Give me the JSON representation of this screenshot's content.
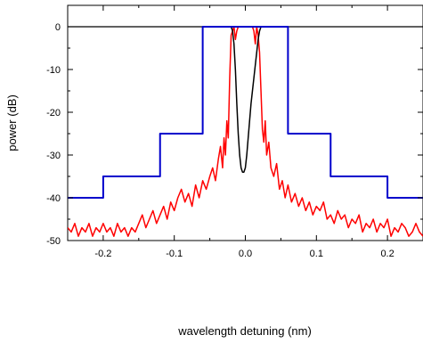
{
  "chart_data": {
    "type": "line",
    "title": "",
    "xlabel": "wavelength detuning (nm)",
    "ylabel": "power (dB)",
    "xlim": [
      -0.25,
      0.25
    ],
    "ylim": [
      -50,
      5
    ],
    "x_ticks": [
      -0.2,
      -0.1,
      0.0,
      0.1,
      0.2
    ],
    "x_tick_labels": [
      "-0.2",
      "-0.1",
      "0.0",
      "0.1",
      "0.2"
    ],
    "y_ticks": [
      0,
      -10,
      -20,
      -30,
      -40,
      -50
    ],
    "y_tick_labels": [
      "0",
      "-10",
      "-20",
      "-30",
      "-40",
      "-50"
    ],
    "grid": false,
    "legend": "none",
    "series": [
      {
        "color": "#ff0000",
        "style": "noisy-line",
        "x": [
          -0.25,
          -0.245,
          -0.24,
          -0.235,
          -0.23,
          -0.225,
          -0.22,
          -0.215,
          -0.21,
          -0.205,
          -0.2,
          -0.195,
          -0.19,
          -0.185,
          -0.18,
          -0.175,
          -0.17,
          -0.165,
          -0.16,
          -0.155,
          -0.15,
          -0.145,
          -0.14,
          -0.135,
          -0.13,
          -0.125,
          -0.12,
          -0.115,
          -0.11,
          -0.105,
          -0.1,
          -0.095,
          -0.09,
          -0.085,
          -0.08,
          -0.075,
          -0.07,
          -0.065,
          -0.06,
          -0.055,
          -0.05,
          -0.046,
          -0.042,
          -0.038,
          -0.035,
          -0.032,
          -0.03,
          -0.028,
          -0.026,
          -0.024,
          -0.022,
          -0.02,
          -0.018,
          -0.016,
          -0.014,
          -0.012,
          -0.01,
          -0.005,
          0.0,
          0.005,
          0.01,
          0.012,
          0.014,
          0.016,
          0.018,
          0.02,
          0.022,
          0.024,
          0.026,
          0.028,
          0.03,
          0.033,
          0.036,
          0.04,
          0.044,
          0.048,
          0.052,
          0.056,
          0.06,
          0.065,
          0.07,
          0.075,
          0.08,
          0.085,
          0.09,
          0.095,
          0.1,
          0.105,
          0.11,
          0.115,
          0.12,
          0.125,
          0.13,
          0.135,
          0.14,
          0.145,
          0.15,
          0.155,
          0.16,
          0.165,
          0.17,
          0.175,
          0.18,
          0.185,
          0.19,
          0.195,
          0.2,
          0.205,
          0.21,
          0.215,
          0.22,
          0.225,
          0.23,
          0.235,
          0.24,
          0.245,
          0.25
        ],
        "y": [
          -47,
          -48,
          -46,
          -49,
          -47,
          -48,
          -46,
          -49,
          -47,
          -48,
          -46,
          -48,
          -47,
          -49,
          -46,
          -48,
          -47,
          -49,
          -47,
          -48,
          -46,
          -44,
          -47,
          -45,
          -43,
          -46,
          -44,
          -42,
          -45,
          -41,
          -43,
          -40,
          -38,
          -41,
          -39,
          -42,
          -37,
          -40,
          -36,
          -38,
          -35,
          -33,
          -36,
          -31,
          -28,
          -33,
          -26,
          -30,
          -22,
          -26,
          -12,
          -2,
          -1,
          0,
          -3,
          -1,
          0,
          0,
          0,
          0,
          0,
          -1,
          -4,
          0,
          -2,
          -6,
          -15,
          -24,
          -27,
          -22,
          -30,
          -27,
          -33,
          -35,
          -32,
          -38,
          -36,
          -40,
          -37,
          -41,
          -39,
          -42,
          -40,
          -43,
          -41,
          -44,
          -42,
          -43,
          -41,
          -45,
          -44,
          -46,
          -43,
          -45,
          -44,
          -47,
          -45,
          -46,
          -44,
          -48,
          -46,
          -47,
          -45,
          -48,
          -46,
          -47,
          -45,
          -49,
          -47,
          -48,
          -46,
          -47,
          -49,
          -48,
          -46,
          -48,
          -49
        ]
      },
      {
        "color": "#000000",
        "style": "line",
        "x": [
          -0.05,
          -0.02,
          -0.018,
          -0.016,
          -0.014,
          -0.012,
          -0.01,
          -0.008,
          -0.006,
          -0.004,
          -0.002,
          0.0,
          0.002,
          0.004,
          0.006,
          0.008,
          0.01,
          0.012,
          0.014,
          0.016,
          0.018,
          0.02,
          0.022,
          0.05
        ],
        "y": [
          0,
          0,
          -1,
          -4,
          -10,
          -18,
          -25,
          -30,
          -33,
          -34,
          -34,
          -33,
          -30,
          -26,
          -22,
          -18,
          -15,
          -12,
          -9,
          -6,
          -3,
          -1,
          0,
          0
        ]
      },
      {
        "color": "#0000cc",
        "style": "step-mask",
        "x": [
          -0.25,
          -0.2,
          -0.2,
          -0.12,
          -0.12,
          -0.06,
          -0.06,
          0.06,
          0.06,
          0.12,
          0.12,
          0.2,
          0.2,
          0.25
        ],
        "y": [
          -40,
          -40,
          -35,
          -35,
          -25,
          -25,
          0,
          0,
          -25,
          -25,
          -35,
          -35,
          -40,
          -40
        ]
      }
    ]
  }
}
